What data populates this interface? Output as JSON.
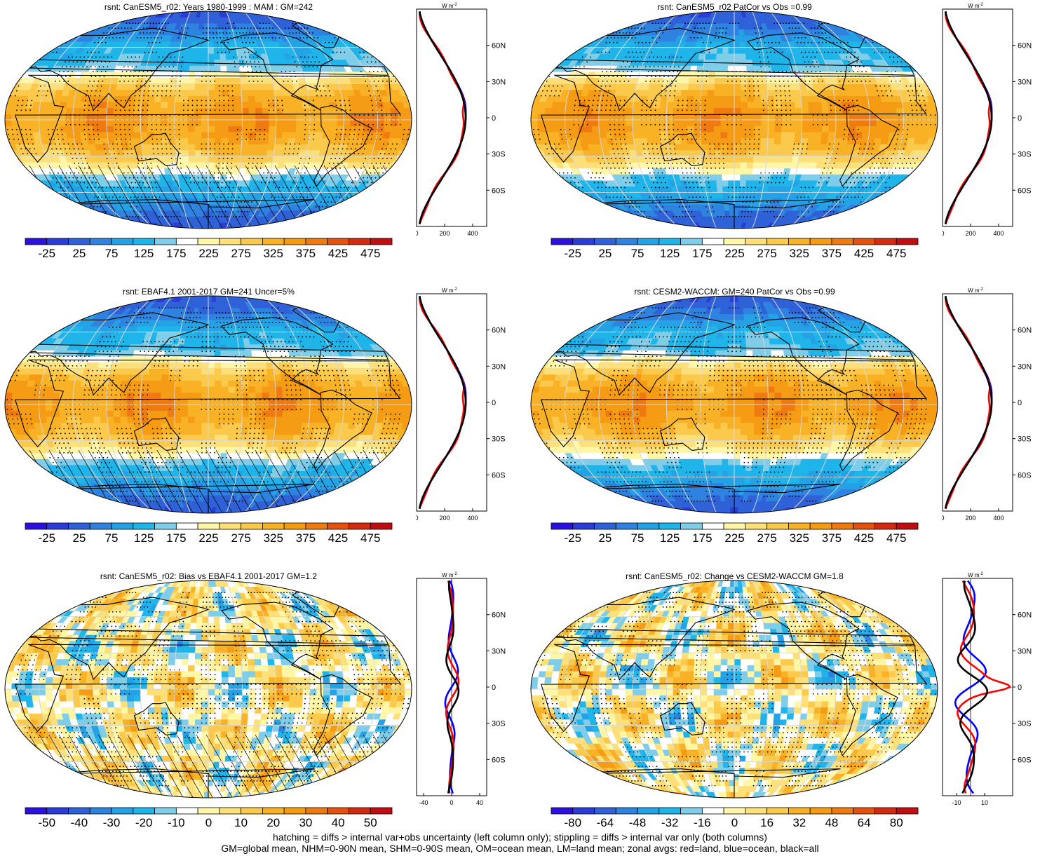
{
  "panels": [
    {
      "id": "p1",
      "title": "rsnt: CanESM5_r02: Years 1980-1999 : MAM : GM=242",
      "field": "mean",
      "hatching": true,
      "colorbar_labels": [
        "-25",
        "25",
        "75",
        "125",
        "175",
        "225",
        "275",
        "325",
        "375",
        "425",
        "475"
      ],
      "zonal_x_ticks": [
        "0",
        "200",
        "400"
      ],
      "zonal_lat_ticks": [
        "60N",
        "30N",
        "0",
        "30S",
        "60S"
      ],
      "zonal_units": "W m-2",
      "zonal_xlim": [
        0,
        500
      ]
    },
    {
      "id": "p2",
      "title": "rsnt: CanESM5_r02 PatCor vs Obs =0.99",
      "field": "mean",
      "hatching": false,
      "colorbar_labels": [
        "-25",
        "25",
        "75",
        "125",
        "175",
        "225",
        "275",
        "325",
        "375",
        "425",
        "475"
      ],
      "zonal_x_ticks": [
        "0",
        "200",
        "400"
      ],
      "zonal_lat_ticks": [
        "60N",
        "30N",
        "0",
        "30S",
        "60S"
      ],
      "zonal_units": "W m-2",
      "zonal_xlim": [
        0,
        500
      ]
    },
    {
      "id": "p3",
      "title": "rsnt: EBAF4.1 2001-2017 GM=241 Uncer=5%",
      "field": "mean",
      "hatching": true,
      "colorbar_labels": [
        "-25",
        "25",
        "75",
        "125",
        "175",
        "225",
        "275",
        "325",
        "375",
        "425",
        "475"
      ],
      "zonal_x_ticks": [
        "0",
        "200",
        "400"
      ],
      "zonal_lat_ticks": [
        "60N",
        "30N",
        "0",
        "30S",
        "60S"
      ],
      "zonal_units": "W m-2",
      "zonal_xlim": [
        0,
        500
      ]
    },
    {
      "id": "p4",
      "title": "rsnt: CESM2-WACCM: GM=240 PatCor vs Obs =0.99",
      "field": "mean",
      "hatching": false,
      "colorbar_labels": [
        "-25",
        "25",
        "75",
        "125",
        "175",
        "225",
        "275",
        "325",
        "375",
        "425",
        "475"
      ],
      "zonal_x_ticks": [
        "0",
        "200",
        "400"
      ],
      "zonal_lat_ticks": [
        "60N",
        "30N",
        "0",
        "30S",
        "60S"
      ],
      "zonal_units": "W m-2",
      "zonal_xlim": [
        0,
        500
      ]
    },
    {
      "id": "p5",
      "title": "rsnt: CanESM5_r02: Bias vs EBAF4.1 2001-2017 GM=1.2",
      "field": "diff",
      "hatching": true,
      "colorbar_labels": [
        "-50",
        "-40",
        "-30",
        "-20",
        "-10",
        "0",
        "10",
        "20",
        "30",
        "40",
        "50"
      ],
      "zonal_x_ticks": [
        "-40",
        "0",
        "40"
      ],
      "zonal_lat_ticks": [
        "60N",
        "30N",
        "0",
        "30S",
        "60S"
      ],
      "zonal_units": "W m-2",
      "zonal_xlim": [
        -50,
        50
      ]
    },
    {
      "id": "p6",
      "title": "rsnt: CanESM5_r02: Change vs CESM2-WACCM GM=1.8",
      "field": "diff",
      "hatching": false,
      "colorbar_labels": [
        "-80",
        "-64",
        "-48",
        "-32",
        "-16",
        "0",
        "16",
        "32",
        "48",
        "64",
        "80"
      ],
      "zonal_x_ticks": [
        "-10",
        "10"
      ],
      "zonal_lat_ticks": [
        "60N",
        "30N",
        "0",
        "30S",
        "60S"
      ],
      "zonal_units": "W m-2",
      "zonal_xlim": [
        -20,
        30
      ]
    }
  ],
  "colors": {
    "mean_palette": [
      "#2b10e0",
      "#2a3dd6",
      "#2f61d8",
      "#2f83e0",
      "#25a2e6",
      "#1fb5ea",
      "#7fcde8",
      "#ffffff",
      "#fff6a8",
      "#fde07a",
      "#fbc94c",
      "#f9b226",
      "#f59b14",
      "#ef7a10",
      "#e4520e",
      "#d42a10",
      "#c00d10"
    ],
    "land_line": "#ff0000",
    "ocean_line": "#0000ff",
    "all_line": "#000000"
  },
  "footer": {
    "line1": "hatching = diffs > internal var+obs uncertainty (left column only); stippling = diffs > internal var only (both columns)",
    "line2": "GM=global mean, NHM=0-90N mean, SHM=0-90S mean, OM=ocean mean, LM=land mean; zonal avgs: red=land, blue=ocean, black=all"
  }
}
